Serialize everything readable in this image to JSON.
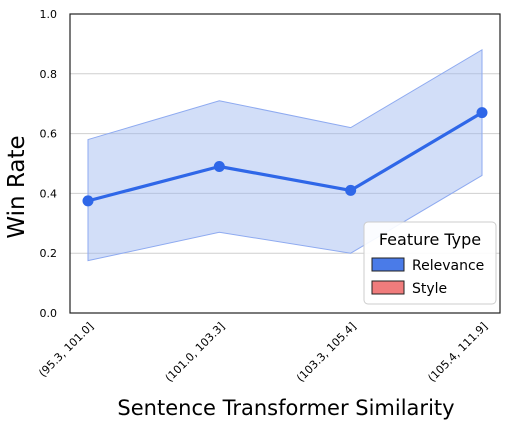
{
  "chart_data": {
    "type": "line",
    "title": "",
    "xlabel": "Sentence Transformer Similarity",
    "ylabel": "Win Rate",
    "categories": [
      "(95.3, 101.0]",
      "(101.0, 103.3]",
      "(103.3, 105.4]",
      "(105.4, 111.9]"
    ],
    "ylim": [
      0.0,
      1.0
    ],
    "yticks": [
      "0.0",
      "0.2",
      "0.4",
      "0.6",
      "0.8",
      "1.0"
    ],
    "grid": "horizontal",
    "legend_position": "lower-right",
    "legend_title": "Feature Type",
    "legend_entries": [
      {
        "label": "Relevance",
        "color": "#4a7be8"
      },
      {
        "label": "Style",
        "color": "#f07c7c"
      }
    ],
    "series": [
      {
        "name": "Relevance",
        "color": "#2f67e8",
        "values": [
          0.375,
          0.49,
          0.41,
          0.67
        ],
        "ci_lower": [
          0.175,
          0.27,
          0.2,
          0.46
        ],
        "ci_upper": [
          0.58,
          0.71,
          0.62,
          0.88
        ]
      }
    ]
  }
}
